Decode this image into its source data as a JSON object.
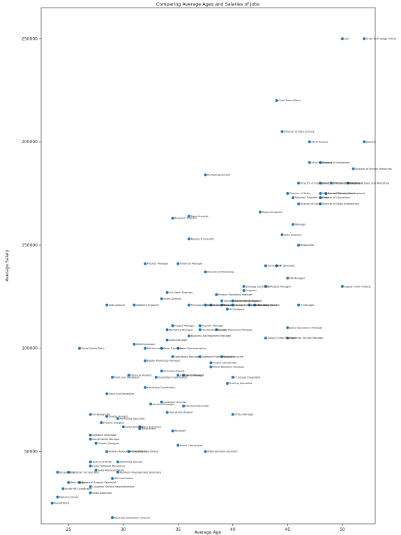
{
  "chart_data": {
    "type": "scatter",
    "title": "Comparing Average Ages and Salaries of Jobs",
    "xlabel": "Average Age",
    "ylabel": "Average Salary",
    "xlim": [
      22.5,
      53
    ],
    "ylim": [
      15000,
      265000
    ],
    "xticks": [
      25,
      30,
      35,
      40,
      45,
      50
    ],
    "yticks": [
      50000,
      100000,
      150000,
      200000,
      250000
    ],
    "grid": false,
    "color": "#1f77b4",
    "points": [
      {
        "label": "CEO",
        "x": 50,
        "y": 250000
      },
      {
        "label": "Chief Technology Officer",
        "x": 52,
        "y": 250000
      },
      {
        "label": "Chief Data Officer",
        "x": 44,
        "y": 220000
      },
      {
        "label": "Director of Data Science",
        "x": 44.5,
        "y": 205000
      },
      {
        "label": "VP of Finance",
        "x": 47,
        "y": 200000
      },
      {
        "label": "Director",
        "x": 52,
        "y": 200000
      },
      {
        "label": "VP of Operations",
        "x": 47,
        "y": 190000
      },
      {
        "label": "Director of Operations",
        "x": 48,
        "y": 190000
      },
      {
        "label": "Director of Human Resources",
        "x": 51,
        "y": 187000
      },
      {
        "label": "Marketing Director",
        "x": 37.5,
        "y": 184000
      },
      {
        "label": "Director of Engineering",
        "x": 46,
        "y": 180000
      },
      {
        "label": "Director of Product Management",
        "x": 48,
        "y": 180000
      },
      {
        "label": "Director of Marketing",
        "x": 49,
        "y": 180000
      },
      {
        "label": "Director of Sales and Marketing",
        "x": 50.5,
        "y": 180000
      },
      {
        "label": "Director of Sales",
        "x": 45,
        "y": 175000
      },
      {
        "label": "Director of Business Development",
        "x": 48,
        "y": 175000
      },
      {
        "label": "Product Development",
        "x": 48.5,
        "y": 175000
      },
      {
        "label": "Software Engineer Manager",
        "x": 45.5,
        "y": 173000
      },
      {
        "label": "Director of Operations",
        "x": 48,
        "y": 173000
      },
      {
        "label": "Director of Sales",
        "x": 46,
        "y": 170000
      },
      {
        "label": "Director of Sales Engineering",
        "x": 48,
        "y": 170000
      },
      {
        "label": "Project Engineer",
        "x": 42.5,
        "y": 166000
      },
      {
        "label": "Research Director",
        "x": 34.5,
        "y": 163000
      },
      {
        "label": "Data Scientist",
        "x": 36,
        "y": 164000
      },
      {
        "label": "Manager",
        "x": 45.5,
        "y": 160000
      },
      {
        "label": "Data Engineer",
        "x": 44.5,
        "y": 155000
      },
      {
        "label": "Research Scientist",
        "x": 36,
        "y": 153000
      },
      {
        "label": "Researcher",
        "x": 46,
        "y": 150000
      },
      {
        "label": "Product Manager",
        "x": 32,
        "y": 141000
      },
      {
        "label": "Financial Manager",
        "x": 35,
        "y": 141000
      },
      {
        "label": "Director of Marketing",
        "x": 37.5,
        "y": 137000
      },
      {
        "label": "Consultant",
        "x": 43,
        "y": 140000
      },
      {
        "label": "HR Specialist",
        "x": 44,
        "y": 140000
      },
      {
        "label": "HR Manager",
        "x": 45,
        "y": 134000
      },
      {
        "label": "Strategy Consultant",
        "x": 41,
        "y": 130000
      },
      {
        "label": "IT Project Manager",
        "x": 43,
        "y": 130000
      },
      {
        "label": "Supply Chain Analyst",
        "x": 50,
        "y": 130000
      },
      {
        "label": "Engineer",
        "x": 41,
        "y": 128000
      },
      {
        "label": "Full Stack Engineer",
        "x": 34,
        "y": 127000
      },
      {
        "label": "Product Marketing Manager",
        "x": 38.5,
        "y": 126000
      },
      {
        "label": "Event Director",
        "x": 33.5,
        "y": 124000
      },
      {
        "label": "Content Marketing Manager",
        "x": 39,
        "y": 123000
      },
      {
        "label": "Social Media Manager",
        "x": 40,
        "y": 123000
      },
      {
        "label": "Data Analyst",
        "x": 28.5,
        "y": 121000
      },
      {
        "label": "Software Engineer",
        "x": 31,
        "y": 121000
      },
      {
        "label": "Principal Engineer",
        "x": 36,
        "y": 121000
      },
      {
        "label": "Operations Manager",
        "x": 37.5,
        "y": 121000
      },
      {
        "label": "Accountant",
        "x": 38,
        "y": 121000
      },
      {
        "label": "Business Analyst",
        "x": 39,
        "y": 121000
      },
      {
        "label": "Human Resources Manager",
        "x": 40,
        "y": 121000
      },
      {
        "label": "Business Intelligence",
        "x": 41.5,
        "y": 121000
      },
      {
        "label": "Marketing Director",
        "x": 42,
        "y": 121000
      },
      {
        "label": "IT Manager",
        "x": 46,
        "y": 121000
      },
      {
        "label": "UX Designer",
        "x": 39.5,
        "y": 119000
      },
      {
        "label": "Project Manager",
        "x": 34.5,
        "y": 111000
      },
      {
        "label": "Account Manager",
        "x": 37,
        "y": 111000
      },
      {
        "label": "Marketing Manager",
        "x": 34,
        "y": 109000
      },
      {
        "label": "Operations Manager",
        "x": 37,
        "y": 109000
      },
      {
        "label": "Human Resources Manager",
        "x": 38.5,
        "y": 109000
      },
      {
        "label": "Sales Operations Manager",
        "x": 45,
        "y": 110000
      },
      {
        "label": "Business Development Manager",
        "x": 36,
        "y": 106000
      },
      {
        "label": "Supply Chain Manager",
        "x": 43,
        "y": 105000
      },
      {
        "label": "Customer Service Manager",
        "x": 45,
        "y": 105000
      },
      {
        "label": "Sales Manager",
        "x": 34,
        "y": 104000
      },
      {
        "label": "Web Developer",
        "x": 31,
        "y": 102000
      },
      {
        "label": "Social Media Team",
        "x": 26,
        "y": 100000
      },
      {
        "label": "HR Generalist",
        "x": 32,
        "y": 100000
      },
      {
        "label": "Sales Executive",
        "x": 33.5,
        "y": 100000
      },
      {
        "label": "Sales Representative",
        "x": 35,
        "y": 100000
      },
      {
        "label": "Operations Manager",
        "x": 34.5,
        "y": 96000
      },
      {
        "label": "Software Project Manager",
        "x": 37,
        "y": 96000
      },
      {
        "label": "Sales Executive",
        "x": 39,
        "y": 96000
      },
      {
        "label": "Digital Marketing Manager",
        "x": 32,
        "y": 94000
      },
      {
        "label": "Project Coordinator",
        "x": 38,
        "y": 93000
      },
      {
        "label": "Public Relations Manager",
        "x": 38,
        "y": 91000
      },
      {
        "label": "Financial Analyst",
        "x": 33.5,
        "y": 89000
      },
      {
        "label": "Financial Analyst",
        "x": 30.5,
        "y": 87000
      },
      {
        "label": "Operations Analyst",
        "x": 35,
        "y": 87000
      },
      {
        "label": "Sales Manager",
        "x": 35.5,
        "y": 87000
      },
      {
        "label": "Front end Developer",
        "x": 29,
        "y": 86000
      },
      {
        "label": "Operations Coordinator",
        "x": 33,
        "y": 86000
      },
      {
        "label": "IT Support Specialist",
        "x": 40,
        "y": 86000
      },
      {
        "label": "Training Specialist",
        "x": 39.5,
        "y": 83000
      },
      {
        "label": "Marketing Coordinator",
        "x": 32,
        "y": 81000
      },
      {
        "label": "Front End Developer",
        "x": 28.5,
        "y": 78000
      },
      {
        "label": "Customer Success",
        "x": 33.5,
        "y": 74000
      },
      {
        "label": "Account Manager",
        "x": 32.5,
        "y": 73000
      },
      {
        "label": "Technical Recruiter",
        "x": 35.5,
        "y": 72000
      },
      {
        "label": "Operations Analyst",
        "x": 34,
        "y": 69000
      },
      {
        "label": "UX Researcher",
        "x": 27,
        "y": 68000
      },
      {
        "label": "Office Manager",
        "x": 40,
        "y": 68000
      },
      {
        "label": "Quality Analyst",
        "x": 28.5,
        "y": 67000
      },
      {
        "label": "Marketing Specialist",
        "x": 29.5,
        "y": 66000
      },
      {
        "label": "Product Designer",
        "x": 28,
        "y": 64000
      },
      {
        "label": "Sales Associate",
        "x": 30,
        "y": 62000
      },
      {
        "label": "Sales Executive",
        "x": 31.5,
        "y": 62000
      },
      {
        "label": "Accountant",
        "x": 31.5,
        "y": 61000
      },
      {
        "label": "Recruiter",
        "x": 34.5,
        "y": 60000
      },
      {
        "label": "Software Developer",
        "x": 27,
        "y": 58000
      },
      {
        "label": "Social Media Manager",
        "x": 27,
        "y": 56000
      },
      {
        "label": "Event Coordinator",
        "x": 35,
        "y": 53000
      },
      {
        "label": "Graphic Designer",
        "x": 27.5,
        "y": 54000
      },
      {
        "label": "Human Resources Coordinator",
        "x": 28.5,
        "y": 50000
      },
      {
        "label": "Marketing Coordinator",
        "x": 30.5,
        "y": 50000
      },
      {
        "label": "Administrative Assistant",
        "x": 37.5,
        "y": 50000
      },
      {
        "label": "Technical Writer",
        "x": 27,
        "y": 45000
      },
      {
        "label": "Marketing Analyst",
        "x": 29.5,
        "y": 45000
      },
      {
        "label": "Junior Software Developer",
        "x": 27,
        "y": 43000
      },
      {
        "label": "Sales Representative",
        "x": 27.5,
        "y": 41000
      },
      {
        "label": "Receptionist",
        "x": 24,
        "y": 40000
      },
      {
        "label": "Customer Success Rep",
        "x": 25,
        "y": 40000
      },
      {
        "label": "Business Development Associate",
        "x": 29.5,
        "y": 40000
      },
      {
        "label": "HR Coordinator",
        "x": 29,
        "y": 37000
      },
      {
        "label": "Web Designer",
        "x": 25,
        "y": 35000
      },
      {
        "label": "Technical Support Specialist",
        "x": 26,
        "y": 35000
      },
      {
        "label": "Customer Service Representative",
        "x": 27,
        "y": 33000
      },
      {
        "label": "Junior HR Coordinator",
        "x": 24.5,
        "y": 32000
      },
      {
        "label": "Sales Associate",
        "x": 27,
        "y": 30000
      },
      {
        "label": "Delivery Driver",
        "x": 24,
        "y": 28000
      },
      {
        "label": "Receptionist",
        "x": 23.5,
        "y": 25000
      },
      {
        "label": "Business Operations Analyst",
        "x": 29,
        "y": 18000
      }
    ]
  }
}
